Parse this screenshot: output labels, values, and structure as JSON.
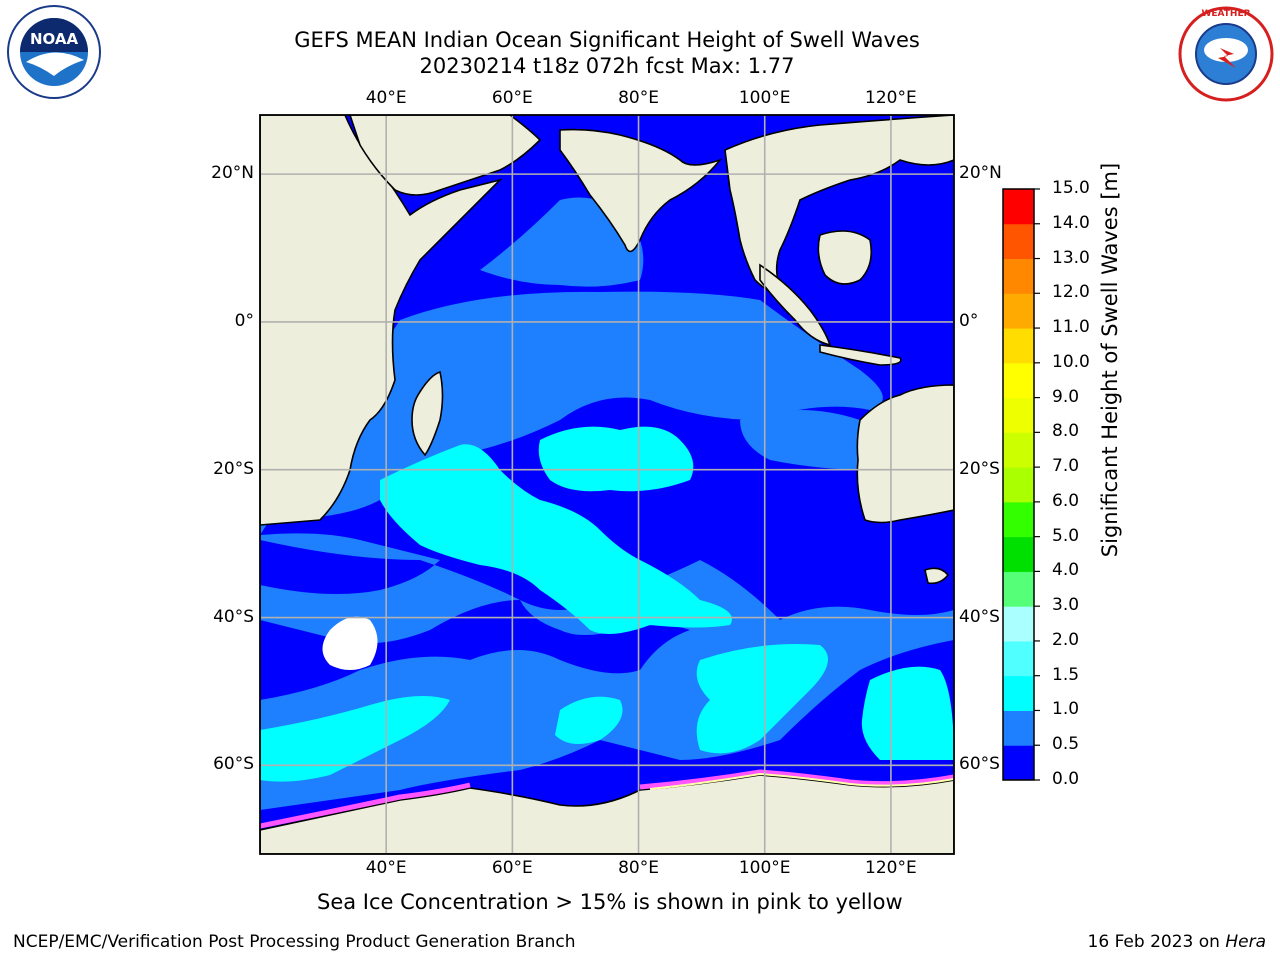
{
  "title_line1": "GEFS MEAN Indian Ocean Significant Height of Swell Waves",
  "title_line2": "20230214 t18z 072h fcst   Max: 1.77",
  "caption": "Sea Ice Concentration > 15% is shown in pink to yellow",
  "footer_left": "NCEP/EMC/Verification Post Processing Product Generation Branch",
  "footer_right_date": "16 Feb 2023 on ",
  "footer_right_host": "Hera",
  "logos": {
    "noaa_text": "NOAA",
    "noaa_ring": "NATIONAL OCEANIC AND ATMOSPHERIC ADMINISTRATION · U.S. DEPARTMENT OF COMMERCE",
    "nws_ring": "NATIONAL WEATHER SERVICE"
  },
  "map": {
    "lon_ticks": [
      "40°E",
      "60°E",
      "80°E",
      "100°E",
      "120°E"
    ],
    "lat_ticks": [
      "20°N",
      "0°",
      "20°S",
      "40°S",
      "60°S"
    ],
    "lon_values": [
      40,
      60,
      80,
      100,
      120
    ],
    "lat_values": [
      20,
      0,
      -20,
      -40,
      -60
    ],
    "lon_range": [
      20,
      130
    ],
    "lat_range": [
      28,
      -72
    ],
    "colors": {
      "land": "#eeeedd",
      "grid": "#b0b0b0",
      "coast": "#000000"
    }
  },
  "colorbar": {
    "title": "Significant Height of Swell Waves [m]",
    "levels": [
      "0.0",
      "0.5",
      "1.0",
      "1.5",
      "2.0",
      "3.0",
      "4.0",
      "5.0",
      "6.0",
      "7.0",
      "8.0",
      "9.0",
      "10.0",
      "11.0",
      "12.0",
      "13.0",
      "14.0",
      "15.0"
    ],
    "colors": [
      "#0000ff",
      "#1e7fff",
      "#00ffff",
      "#50ffff",
      "#aaffff",
      "#55ff77",
      "#00e000",
      "#33ff00",
      "#aaff00",
      "#ccff00",
      "#eeff00",
      "#ffff00",
      "#ffdd00",
      "#ffaa00",
      "#ff8800",
      "#ff5500",
      "#ff0000"
    ]
  }
}
